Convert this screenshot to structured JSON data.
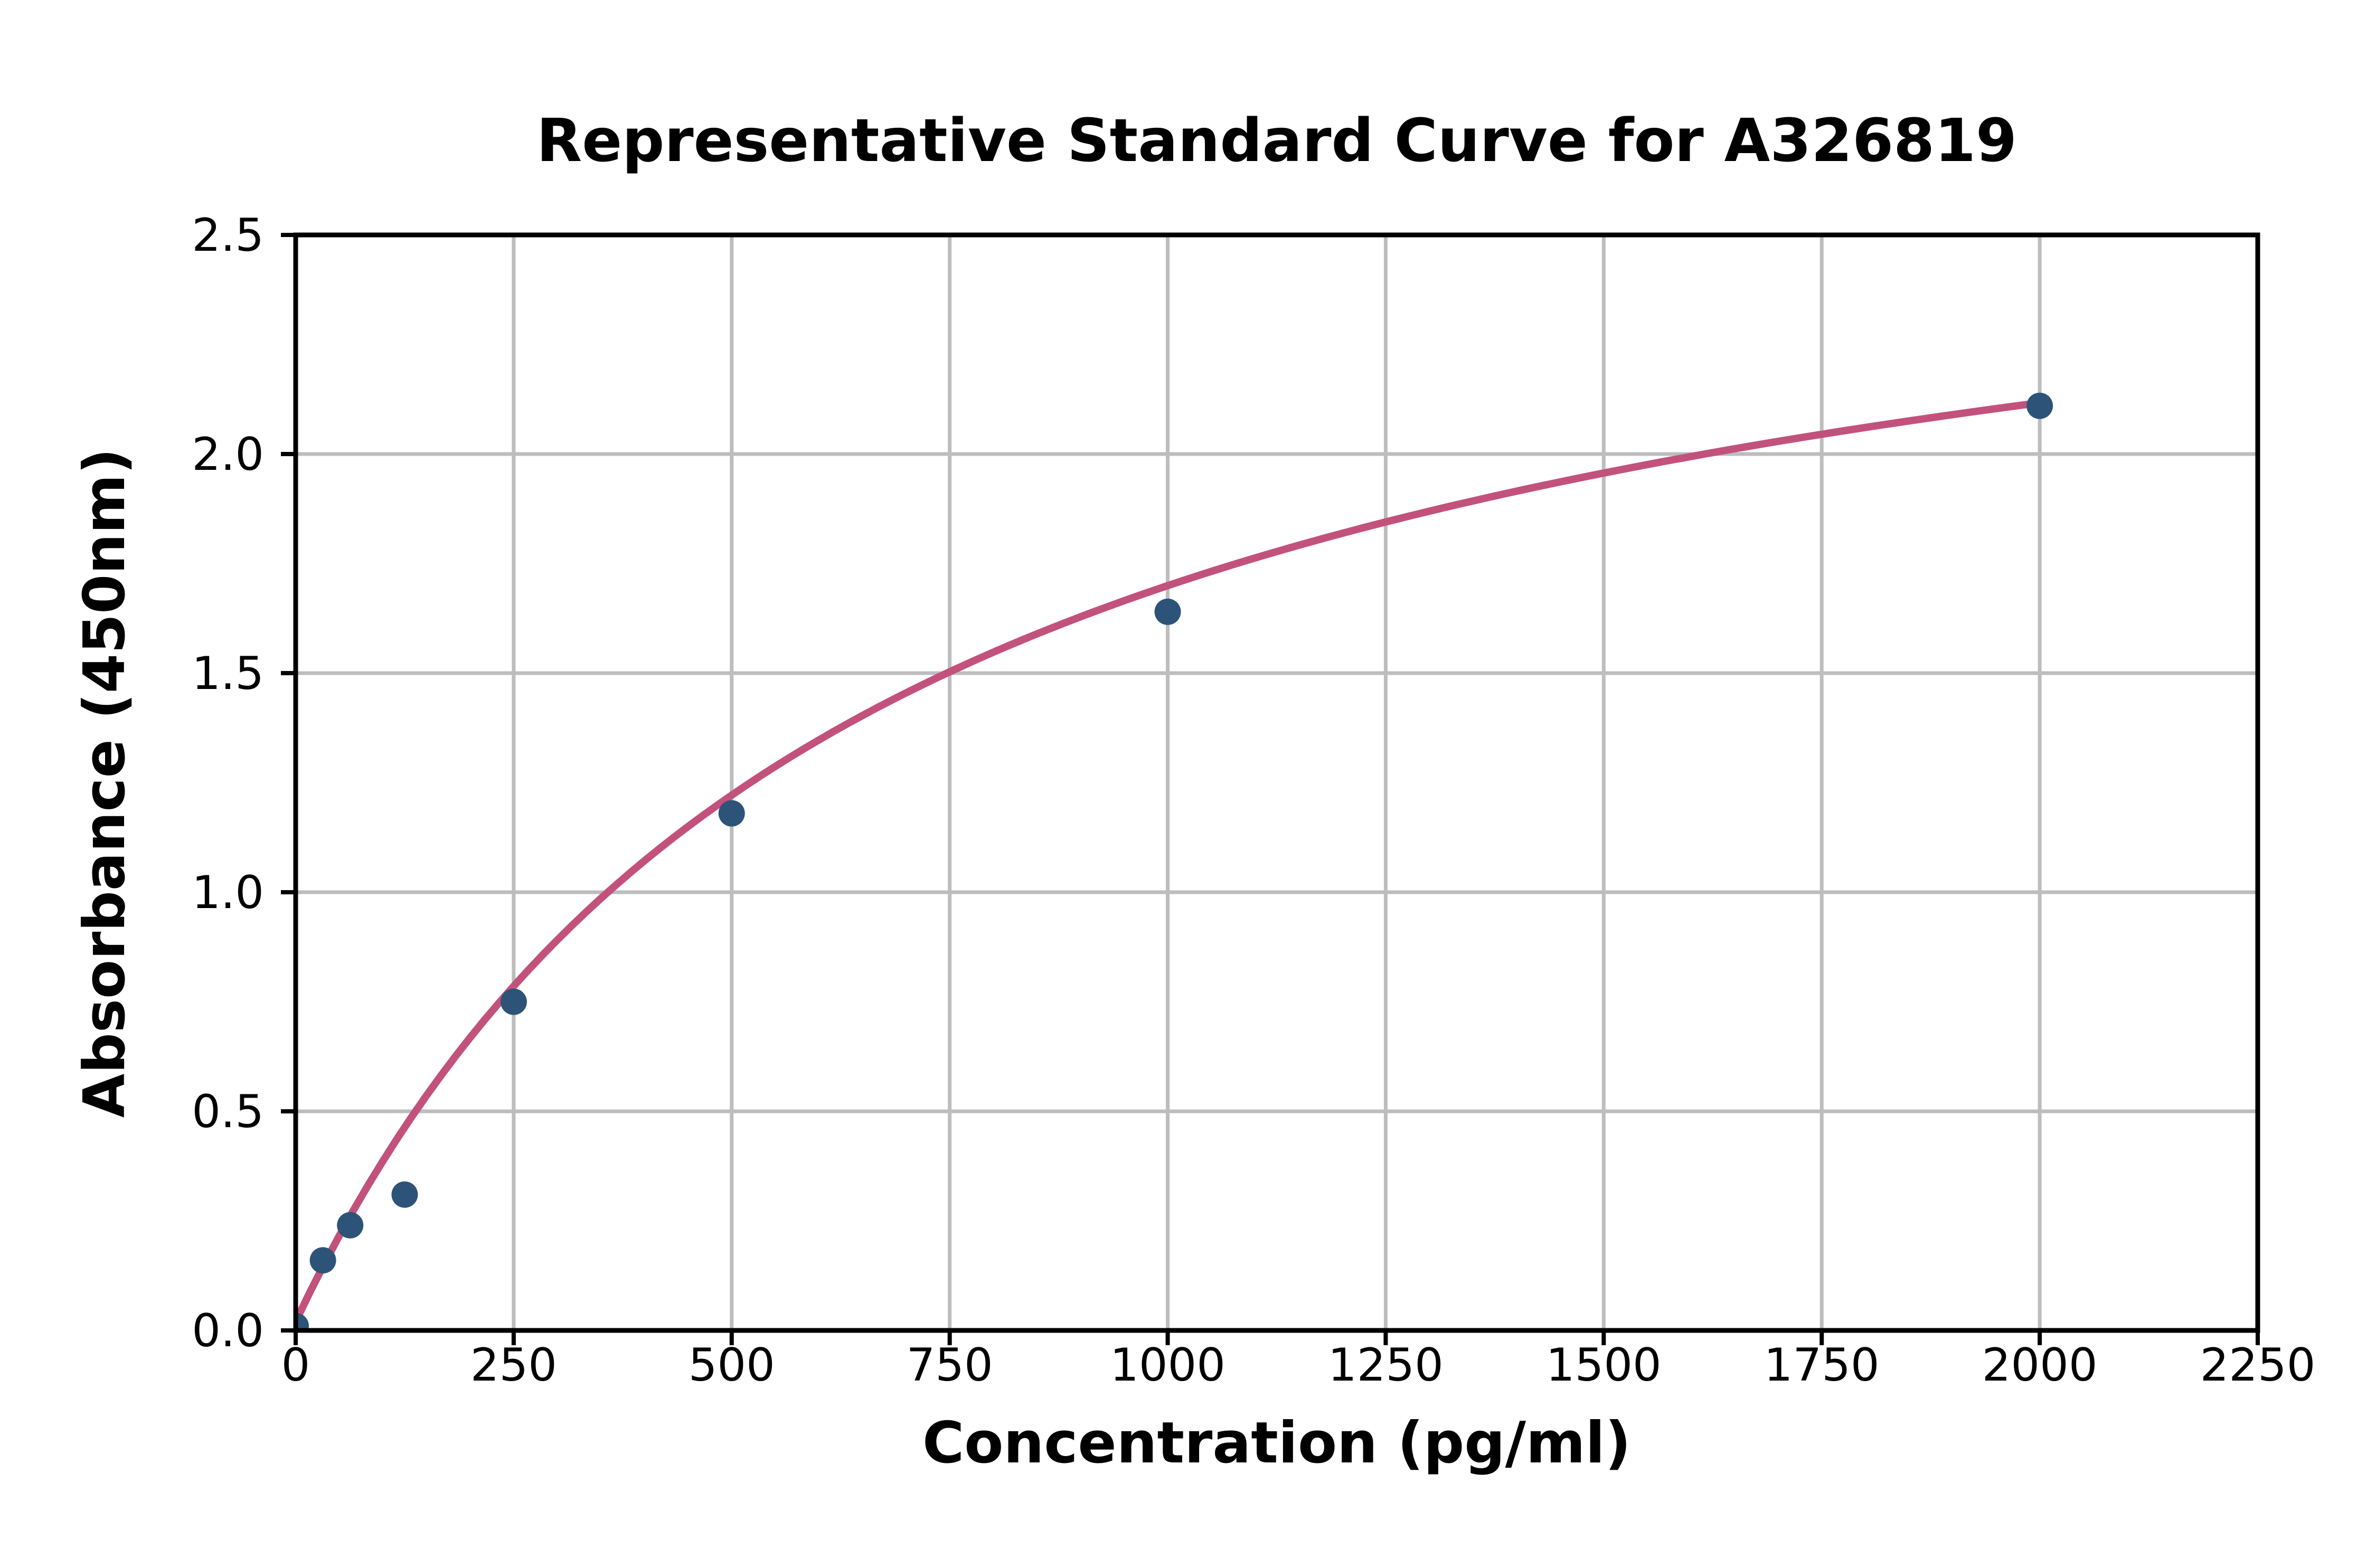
{
  "figure": {
    "background": "#ffffff"
  },
  "chart_data": {
    "type": "scatter",
    "title": "Representative Standard Curve for A326819",
    "xlabel": "Concentration (pg/ml)",
    "ylabel": "Absorbance (450nm)",
    "xlim": [
      0,
      2250
    ],
    "ylim": [
      0,
      2.5
    ],
    "grid": true,
    "legend_position": "none",
    "xticks": {
      "values": [
        0,
        250,
        500,
        750,
        1000,
        1250,
        1500,
        1750,
        2000,
        2250
      ],
      "labels": [
        "0",
        "250",
        "500",
        "750",
        "1000",
        "1250",
        "1500",
        "1750",
        "2000",
        "2250"
      ]
    },
    "yticks": {
      "values": [
        0,
        0.5,
        1.0,
        1.5,
        2.0,
        2.5
      ],
      "labels": [
        "0.0",
        "0.5",
        "1.0",
        "1.5",
        "2.0",
        "2.5"
      ]
    },
    "series": [
      {
        "name": "standard-points",
        "marker": "circle",
        "points": [
          {
            "x": 0,
            "y": 0.01
          },
          {
            "x": 31.25,
            "y": 0.16
          },
          {
            "x": 62.5,
            "y": 0.24
          },
          {
            "x": 125,
            "y": 0.31
          },
          {
            "x": 250,
            "y": 0.75
          },
          {
            "x": 500,
            "y": 1.18
          },
          {
            "x": 1000,
            "y": 1.64
          },
          {
            "x": 2000,
            "y": 2.11
          }
        ]
      }
    ],
    "fit_curve": {
      "name": "standard-curve-fit",
      "model": "y = c + a*x/(b+x)",
      "a": 2.79,
      "b": 661,
      "c": 0.02,
      "x_start": 0,
      "x_end": 2000
    },
    "colors": {
      "marker": "#2d5478",
      "curve": "#c2527c",
      "grid": "#bdbdbd",
      "axis": "#000000",
      "text": "#000000"
    }
  }
}
